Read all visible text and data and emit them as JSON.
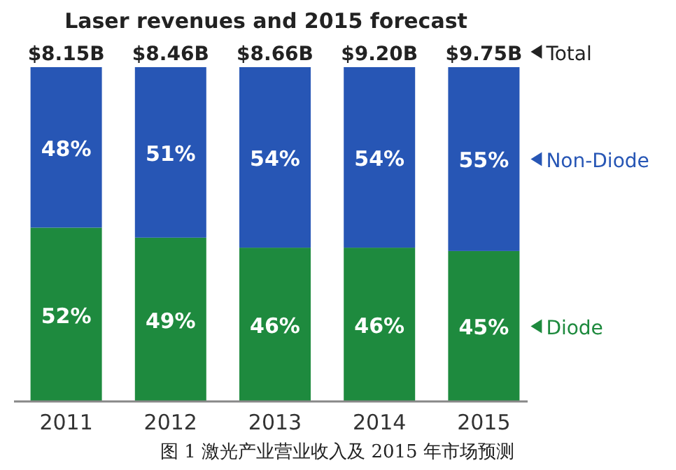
{
  "chart_data": {
    "type": "bar",
    "stacked": true,
    "title": "Laser revenues and 2015 forecast",
    "categories": [
      "2011",
      "2012",
      "2013",
      "2014",
      "2015"
    ],
    "series": [
      {
        "name": "Diode",
        "color": "#1e8a3e",
        "values": [
          52,
          49,
          46,
          46,
          45
        ],
        "value_labels": [
          "52%",
          "49%",
          "46%",
          "46%",
          "45%"
        ]
      },
      {
        "name": "Non-Diode",
        "color": "#2756b5",
        "values": [
          48,
          51,
          54,
          54,
          55
        ],
        "value_labels": [
          "48%",
          "51%",
          "54%",
          "54%",
          "55%"
        ]
      }
    ],
    "annotations": [
      "Total",
      "图 1 激光产业营业收入及 2015 年市场预测",
      "$8.15B",
      "$8.46B",
      "$8.66B",
      "$9.20B",
      "$9.75B"
    ],
    "legend": "right",
    "tick_labels": "x"
  }
}
